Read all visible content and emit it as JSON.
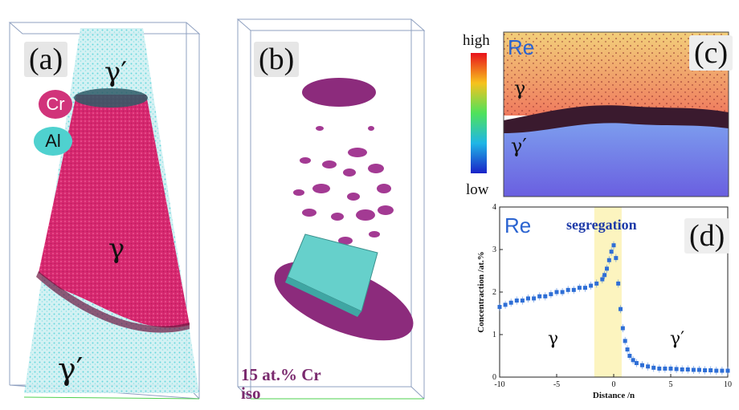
{
  "panel_a": {
    "label": "(a)",
    "legend": [
      {
        "label": "Cr",
        "color": "#d1337a"
      },
      {
        "label": "Al",
        "color": "#4fd1cf"
      }
    ],
    "phase_top": "γ′",
    "phase_middle": "γ",
    "phase_bottom": "γ′"
  },
  "panel_b": {
    "label": "(b)",
    "iso_line1": "15 at.% Cr",
    "iso_line2": "iso"
  },
  "panel_c": {
    "label": "(c)",
    "element": "Re",
    "colorbar_high": "high",
    "colorbar_low": "low",
    "phase_top": "γ",
    "phase_bottom": "γ′"
  },
  "panel_d": {
    "label": "(d)",
    "element": "Re",
    "annotation": "segregation",
    "phase_left": "γ",
    "phase_right": "γ′"
  },
  "chart_data": {
    "type": "scatter",
    "xlabel": "Distance /n",
    "ylabel": "Concentraction /at.%",
    "xlim": [
      -10,
      10
    ],
    "ylim": [
      0,
      4
    ],
    "xticks": [
      "-10",
      "-5",
      "0",
      "5",
      "10"
    ],
    "yticks": [
      "0",
      "1",
      "2",
      "3",
      "4"
    ],
    "highlight_region": [
      -1.7,
      0.7
    ],
    "series": [
      {
        "color": "#2f6fd6",
        "x": [
          -10,
          -9.5,
          -9,
          -8.5,
          -8,
          -7.5,
          -7,
          -6.5,
          -6,
          -5.5,
          -5,
          -4.5,
          -4,
          -3.5,
          -3,
          -2.5,
          -2,
          -1.5,
          -1,
          -0.8,
          -0.6,
          -0.4,
          -0.2,
          0,
          0.2,
          0.4,
          0.6,
          0.8,
          1,
          1.2,
          1.4,
          1.7,
          2,
          2.5,
          3,
          3.5,
          4,
          4.5,
          5,
          5.5,
          6,
          6.5,
          7,
          7.5,
          8,
          8.5,
          9,
          9.5,
          10
        ],
        "y": [
          1.65,
          1.7,
          1.75,
          1.8,
          1.8,
          1.85,
          1.85,
          1.9,
          1.9,
          1.95,
          2.0,
          2.0,
          2.05,
          2.05,
          2.1,
          2.1,
          2.15,
          2.2,
          2.3,
          2.4,
          2.55,
          2.75,
          2.95,
          3.1,
          2.8,
          2.2,
          1.6,
          1.15,
          0.85,
          0.65,
          0.5,
          0.4,
          0.33,
          0.28,
          0.25,
          0.22,
          0.2,
          0.2,
          0.2,
          0.19,
          0.18,
          0.18,
          0.17,
          0.17,
          0.16,
          0.16,
          0.15,
          0.15,
          0.15
        ]
      }
    ]
  }
}
